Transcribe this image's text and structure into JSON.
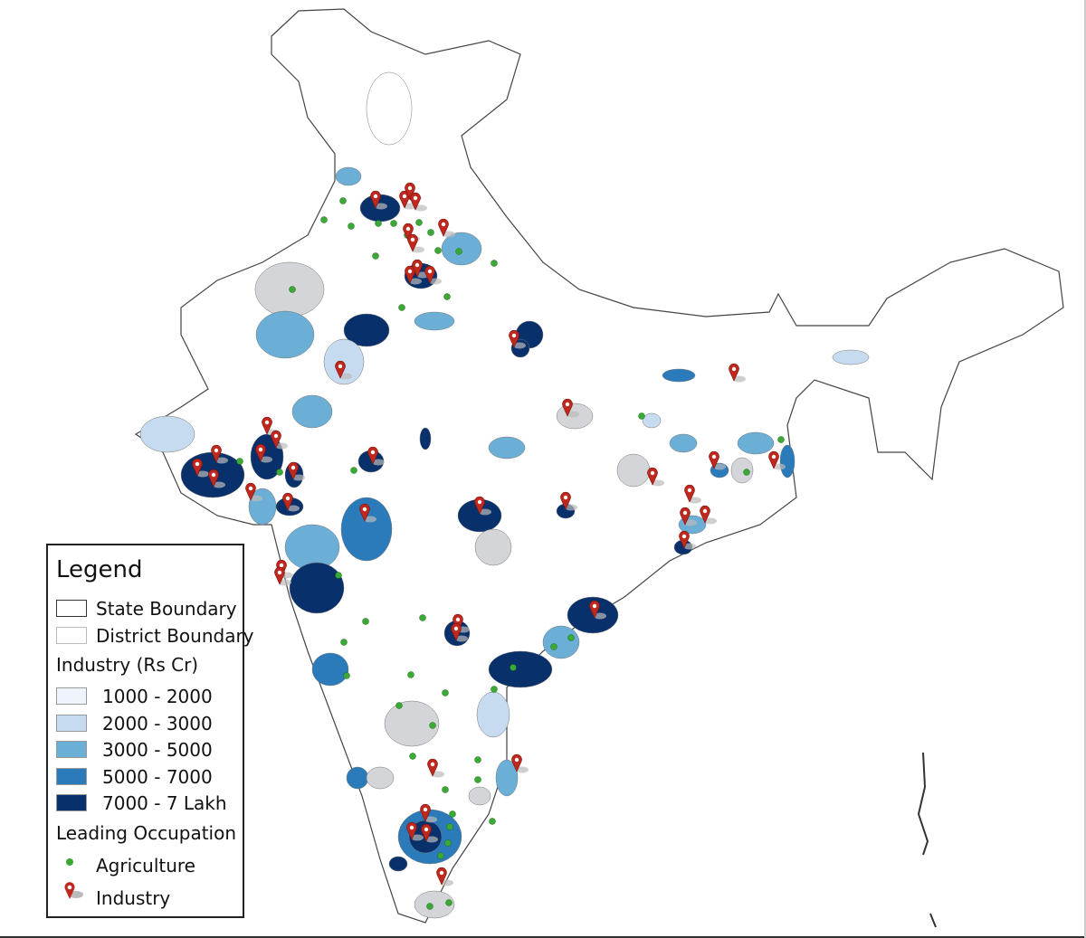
{
  "legend": {
    "title": "Legend",
    "boundaries": [
      {
        "label": "State Boundary",
        "border": "#333333"
      },
      {
        "label": "District Boundary",
        "border": "#bbbbbb"
      }
    ],
    "industry_title": "Industry (Rs Cr)",
    "industry_classes": [
      {
        "label": "1000 - 2000",
        "color": "#eff3fb"
      },
      {
        "label": "2000 - 3000",
        "color": "#c6dbef"
      },
      {
        "label": "3000 - 5000",
        "color": "#6baed6"
      },
      {
        "label": "5000 - 7000",
        "color": "#2b7bba"
      },
      {
        "label": "7000 - 7 Lakh",
        "color": "#08306b"
      }
    ],
    "occupation_title": "Leading Occupation",
    "occupations": [
      {
        "label": "Agriculture",
        "icon": "green-dot",
        "color": "#3aa935"
      },
      {
        "label": "Industry",
        "icon": "red-map-pin",
        "color": "#c0281e"
      }
    ]
  },
  "colors": {
    "no_data_grey": "#d3d5d8",
    "land": "#ffffff",
    "border": "#555555"
  }
}
